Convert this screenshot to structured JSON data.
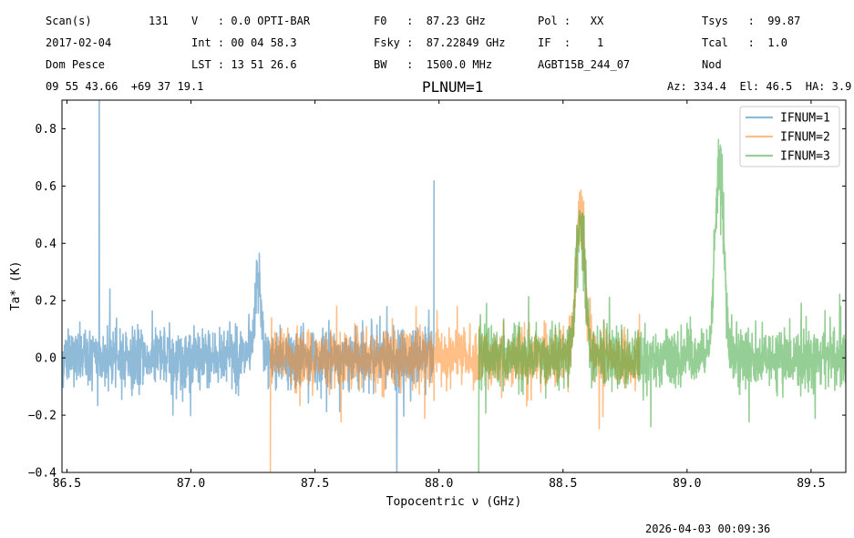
{
  "header": {
    "col1": [
      "Scan(s)",
      "2017-02-04",
      "Dom Pesce",
      "09 55 43.66  +69 37 19.1"
    ],
    "scan_number": "131",
    "col2": [
      "V   : 0.0 OPTI-BAR",
      "Int : 00 04 58.3",
      "LST : 13 51 26.6"
    ],
    "col3": [
      "F0   :  87.23 GHz",
      "Fsky :  87.22849 GHz",
      "BW   :  1500.0 MHz"
    ],
    "col4": [
      "Pol :   XX",
      "IF  :    1",
      "AGBT15B_244_07"
    ],
    "col5": [
      "Tsys   :  99.87",
      "Tcal   :  1.0",
      "Nod"
    ],
    "plot_title": "PLNUM=1",
    "azel": "Az: 334.4  El: 46.5  HA: 3.9"
  },
  "footer": {
    "timestamp": "2026-04-03 00:09:36"
  },
  "chart_data": {
    "type": "line",
    "xlabel": "Topocentric ν (GHz)",
    "ylabel": "Ta* (K)",
    "xlim": [
      86.48,
      89.64
    ],
    "ylim": [
      -0.4,
      0.9
    ],
    "xticks": [
      86.5,
      87.0,
      87.5,
      88.0,
      88.5,
      89.0,
      89.5
    ],
    "xtick_labels": [
      "86.5",
      "87.0",
      "87.5",
      "88.0",
      "88.5",
      "89.0",
      "89.5"
    ],
    "yticks": [
      -0.4,
      -0.2,
      0.0,
      0.2,
      0.4,
      0.6,
      0.8
    ],
    "ytick_labels": [
      "−0.4",
      "−0.2",
      "0.0",
      "0.2",
      "0.4",
      "0.6",
      "0.8"
    ],
    "legend_position": "top-right",
    "series": [
      {
        "name": "IFNUM=1",
        "color": "#1f77b4",
        "x_range": [
          86.48,
          87.98
        ],
        "noise_sigma": 0.1,
        "features": [
          {
            "x": 86.63,
            "peak": 0.9,
            "kind": "spike"
          },
          {
            "x": 87.27,
            "peak": 0.32,
            "kind": "bump"
          },
          {
            "x": 87.83,
            "peak": -0.4,
            "kind": "spike"
          },
          {
            "x": 87.98,
            "peak": 0.62,
            "kind": "spike"
          }
        ]
      },
      {
        "name": "IFNUM=2",
        "color": "#ff7f0e",
        "x_range": [
          87.32,
          88.81
        ],
        "noise_sigma": 0.1,
        "features": [
          {
            "x": 87.32,
            "peak": -0.4,
            "kind": "spike"
          },
          {
            "x": 88.57,
            "peak": 0.56,
            "kind": "line"
          }
        ]
      },
      {
        "name": "IFNUM=3",
        "color": "#2ca02c",
        "x_range": [
          88.16,
          89.64
        ],
        "noise_sigma": 0.1,
        "features": [
          {
            "x": 88.16,
            "peak": -0.4,
            "kind": "spike"
          },
          {
            "x": 88.57,
            "peak": 0.5,
            "kind": "line"
          },
          {
            "x": 89.13,
            "peak": 0.71,
            "kind": "line"
          }
        ]
      }
    ]
  }
}
